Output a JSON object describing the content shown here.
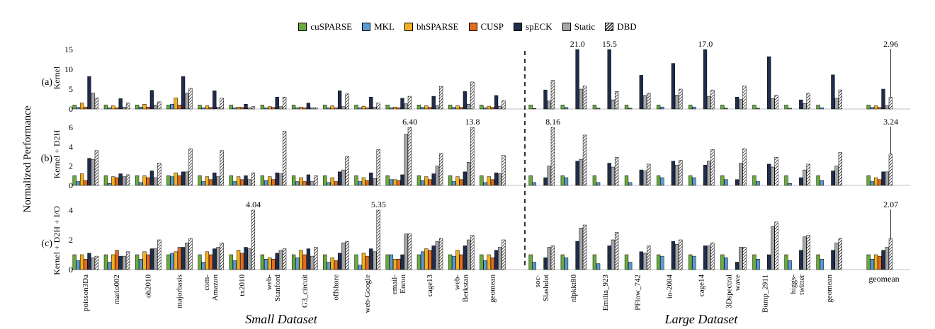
{
  "chart_data": {
    "type": "bar",
    "ylabel": "Normalized Performance",
    "series": [
      {
        "name": "cuSPARSE",
        "color": "#6aab3f",
        "pattern": "solid"
      },
      {
        "name": "MKL",
        "color": "#5b9bd5",
        "pattern": "solid"
      },
      {
        "name": "bhSPARSE",
        "color": "#f2b01e",
        "pattern": "solid"
      },
      {
        "name": "CUSP",
        "color": "#e46c1e",
        "pattern": "solid"
      },
      {
        "name": "spECK",
        "color": "#1f2d4d",
        "pattern": "solid"
      },
      {
        "name": "Static",
        "color": "#a6a6a6",
        "pattern": "solid"
      },
      {
        "name": "DBD",
        "color": "#ffffff",
        "pattern": "hatch"
      }
    ],
    "groups": [
      {
        "label": "Small Dataset",
        "categories": [
          "poisson3Da",
          "mario002",
          "oh2010",
          "majorbasis",
          "com-\nAmazon",
          "tx2010",
          "web-\nStanford",
          "G3_circuit",
          "offshore",
          "web-Google",
          "email-\nEnron",
          "cage13",
          "web-\nBerkstan",
          "geomean"
        ]
      },
      {
        "label": "Large Dataset",
        "categories": [
          "soc-\nSlashdot",
          "nlpkkt80",
          "Emilia_923",
          "PFlow_742",
          "in-2004",
          "cage14",
          "3Dspectral\nwave",
          "Bump_2911",
          "higgs-\ntwitter",
          "geomean"
        ]
      },
      {
        "label": "",
        "categories": [
          "geomean"
        ]
      }
    ],
    "panels": [
      {
        "id": "(a)",
        "title": "Kernel",
        "ylim": [
          0,
          15
        ],
        "yticks": [
          0,
          5,
          10,
          15
        ],
        "values": [
          [
            1,
            0.4,
            1.5,
            0.5,
            8.2,
            4,
            2.8
          ],
          [
            1,
            0.3,
            0.8,
            0.3,
            2.6,
            0.5,
            1.5
          ],
          [
            1,
            0.5,
            1.2,
            0.5,
            4.7,
            1,
            1.8
          ],
          [
            1,
            1.2,
            2.8,
            1,
            8.2,
            4,
            5.2
          ],
          [
            1,
            0.3,
            0.8,
            0.4,
            4.6,
            0.5,
            2.7
          ],
          [
            1,
            0.3,
            0.5,
            0.4,
            1.2,
            0.3,
            0.6
          ],
          [
            1,
            0.3,
            0.6,
            0.4,
            3,
            0.6,
            3
          ],
          [
            1,
            0.3,
            0.5,
            0.3,
            1.5,
            0.3,
            0.3
          ],
          [
            1,
            0.3,
            0.8,
            0.3,
            4.6,
            0.6,
            3.8
          ],
          [
            1,
            0.3,
            0.7,
            0.3,
            3,
            0.5,
            1.5
          ],
          [
            1,
            0.3,
            0.5,
            0.3,
            2.7,
            1.3,
            3.2
          ],
          [
            1,
            0.4,
            0.8,
            0.4,
            3.2,
            0.8,
            5.7
          ],
          [
            1,
            0.4,
            0.8,
            0.4,
            4.4,
            1.2,
            6.8
          ],
          [
            1,
            0.3,
            0.7,
            0.4,
            3.4,
            0.7,
            2.1
          ],
          [
            1,
            0.1,
            null,
            null,
            4.8,
            2,
            7.2
          ],
          [
            1,
            0.4,
            null,
            null,
            21,
            5,
            5.8
          ],
          [
            1,
            0.2,
            null,
            null,
            15.5,
            2.3,
            4.4
          ],
          [
            1,
            0.2,
            null,
            null,
            8.5,
            3.4,
            4
          ],
          [
            1,
            0.5,
            null,
            null,
            11.5,
            3.5,
            5
          ],
          [
            1,
            0.5,
            null,
            null,
            17,
            3.2,
            4.8
          ],
          [
            1,
            0.2,
            null,
            null,
            3,
            2.4,
            5.8
          ],
          [
            1,
            0.2,
            null,
            null,
            13.2,
            2.6,
            3.5
          ],
          [
            1,
            0.2,
            null,
            null,
            2.3,
            1.4,
            4
          ],
          [
            1,
            0.3,
            null,
            null,
            8.6,
            2.7,
            4.8
          ],
          [
            1,
            0.4,
            0.8,
            0.4,
            5,
            0.8,
            2.96
          ]
        ],
        "labels": [
          {
            "cat": 15,
            "series": 4,
            "text": "21.0"
          },
          {
            "cat": 16,
            "series": 4,
            "text": "15.5"
          },
          {
            "cat": 19,
            "series": 4,
            "text": "17.0"
          },
          {
            "cat": 24,
            "series": 6,
            "text": "2.96"
          }
        ]
      },
      {
        "id": "(b)",
        "title": "Kernel + D2H",
        "ylim": [
          0,
          6
        ],
        "yticks": [
          0,
          2,
          4,
          6
        ],
        "values": [
          [
            1,
            0.4,
            1.2,
            0.5,
            2.8,
            2.7,
            3.6
          ],
          [
            1,
            0.2,
            0.9,
            0.8,
            1.2,
            0.9,
            1.1
          ],
          [
            1,
            0.3,
            1,
            0.8,
            1.5,
            0.8,
            2.3
          ],
          [
            1,
            0.9,
            1.3,
            1,
            1.4,
            1.4,
            3.8
          ],
          [
            1,
            0.4,
            0.9,
            0.6,
            1.3,
            0.9,
            3.6
          ],
          [
            1,
            0.4,
            0.9,
            0.6,
            1,
            0.6,
            1.3
          ],
          [
            1,
            0.5,
            0.9,
            0.6,
            1.3,
            1.2,
            5.6
          ],
          [
            1,
            0.4,
            0.8,
            0.4,
            1.1,
            0.4,
            1
          ],
          [
            1,
            0.3,
            0.8,
            0.4,
            1.4,
            1.6,
            3
          ],
          [
            1,
            0.4,
            0.8,
            0.5,
            1.3,
            0.7,
            3.7
          ],
          [
            1,
            0.6,
            0.6,
            0.5,
            1.1,
            5.3,
            6.4
          ],
          [
            1,
            0.5,
            0.9,
            0.6,
            1.2,
            2,
            3.3
          ],
          [
            1,
            0.4,
            0.9,
            0.6,
            1.4,
            2.4,
            13.8
          ],
          [
            1,
            0.3,
            0.9,
            0.6,
            1.3,
            1.2,
            3.1
          ],
          [
            1,
            0.3,
            null,
            null,
            0.8,
            2,
            8.16
          ],
          [
            1,
            0.8,
            null,
            null,
            2.5,
            2.7,
            5.2
          ],
          [
            1,
            0.3,
            null,
            null,
            2.3,
            1.9,
            2.9
          ],
          [
            1,
            0.3,
            null,
            null,
            1.6,
            1.5,
            2.2
          ],
          [
            1,
            0.8,
            null,
            null,
            2.5,
            2.1,
            2.6
          ],
          [
            1,
            0.8,
            null,
            null,
            2.1,
            2.5,
            3.7
          ],
          [
            1,
            0.6,
            null,
            null,
            0.6,
            2.3,
            3.8
          ],
          [
            1,
            0.4,
            null,
            null,
            2.2,
            1.9,
            2.9
          ],
          [
            1,
            0.2,
            null,
            null,
            0.8,
            1.6,
            2.2
          ],
          [
            1,
            0.5,
            null,
            null,
            1.5,
            2,
            3.4
          ],
          [
            1,
            0.4,
            0.8,
            0.6,
            1.4,
            1.4,
            3.24
          ]
        ],
        "labels": [
          {
            "cat": 10,
            "series": 6,
            "text": "6.40"
          },
          {
            "cat": 12,
            "series": 6,
            "text": "13.8"
          },
          {
            "cat": 14,
            "series": 6,
            "text": "8.16"
          },
          {
            "cat": 24,
            "series": 6,
            "text": "3.24"
          }
        ]
      },
      {
        "id": "(c)",
        "title": "Kernel + D2H + I/O",
        "ylim": [
          0,
          4
        ],
        "yticks": [
          0,
          2,
          4
        ],
        "values": [
          [
            1,
            0.6,
            1,
            0.7,
            1.1,
            0.8,
            0.9
          ],
          [
            1,
            0.5,
            1,
            1.3,
            0.9,
            0.9,
            1.2
          ],
          [
            1,
            0.7,
            1.2,
            1,
            1.4,
            1.4,
            2
          ],
          [
            1,
            1.1,
            1.2,
            1.5,
            1.5,
            1.8,
            2.1
          ],
          [
            1,
            0.5,
            1.2,
            1,
            1.4,
            1.5,
            1.8
          ],
          [
            1,
            0.6,
            1.3,
            1.1,
            1.5,
            1.4,
            4.04
          ],
          [
            1,
            0.7,
            0.8,
            0.7,
            1.1,
            1.3,
            1.4
          ],
          [
            1,
            0.8,
            1.3,
            1,
            1.4,
            0.9,
            1.5
          ],
          [
            1,
            0.5,
            0.8,
            0.6,
            1.1,
            1.8,
            1.9
          ],
          [
            1,
            0.3,
            1.1,
            0.9,
            1.4,
            1.2,
            5.35
          ],
          [
            1,
            1,
            0.7,
            0.7,
            1,
            2.4,
            2.4
          ],
          [
            1,
            1.2,
            1.4,
            1.3,
            1.6,
            1.9,
            2.1
          ],
          [
            1,
            0.9,
            1.3,
            1,
            1.6,
            2,
            2.3
          ],
          [
            1,
            0.6,
            1,
            0.8,
            1.3,
            1.5,
            2
          ],
          [
            1,
            0.5,
            null,
            null,
            0.8,
            1.5,
            1.6
          ],
          [
            1,
            0.8,
            null,
            null,
            1.9,
            2.8,
            3
          ],
          [
            1,
            0.4,
            null,
            null,
            1.6,
            2,
            2.5
          ],
          [
            1,
            0.5,
            null,
            null,
            1.2,
            1.1,
            1.6
          ],
          [
            1,
            0.9,
            null,
            null,
            1.9,
            1.7,
            2
          ],
          [
            1,
            0.9,
            null,
            null,
            1.6,
            1.6,
            1.8
          ],
          [
            1,
            0.8,
            null,
            null,
            0.5,
            1.5,
            1.5
          ],
          [
            1,
            0.7,
            null,
            null,
            1,
            2.9,
            3.2
          ],
          [
            1,
            0.6,
            null,
            null,
            1.3,
            2.2,
            2.3
          ],
          [
            1,
            0.7,
            null,
            null,
            1.3,
            1.8,
            2.1
          ],
          [
            1,
            0.7,
            1,
            0.9,
            1.3,
            1.5,
            2.07
          ]
        ],
        "labels": [
          {
            "cat": 5,
            "series": 6,
            "text": "4.04"
          },
          {
            "cat": 9,
            "series": 6,
            "text": "5.35"
          },
          {
            "cat": 24,
            "series": 6,
            "text": "2.07"
          }
        ]
      }
    ]
  }
}
